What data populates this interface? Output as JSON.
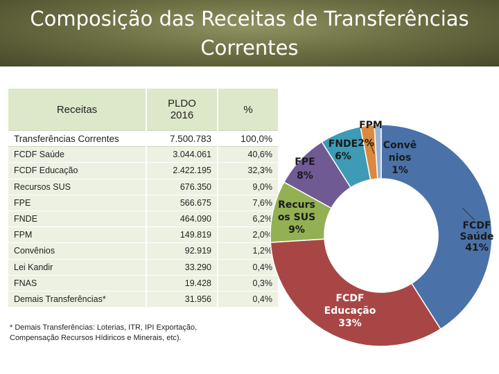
{
  "header": {
    "title_line1": "Composição das Receitas de Transferências",
    "title_line2": "Correntes"
  },
  "table": {
    "headers": [
      "Receitas",
      "PLDO 2016",
      "%"
    ],
    "rows": [
      {
        "receita": "Transferências Correntes",
        "pldo": "7.500.783",
        "pct": "100,0%"
      },
      {
        "receita": "FCDF Saúde",
        "pldo": "3.044.061",
        "pct": "40,6%"
      },
      {
        "receita": "FCDF Educação",
        "pldo": "2.422.195",
        "pct": "32,3%"
      },
      {
        "receita": "Recursos SUS",
        "pldo": "676.350",
        "pct": "9,0%"
      },
      {
        "receita": "FPE",
        "pldo": "566.675",
        "pct": "7,6%"
      },
      {
        "receita": "FNDE",
        "pldo": "464.090",
        "pct": "6,2%"
      },
      {
        "receita": "FPM",
        "pldo": "149.819",
        "pct": "2,0%"
      },
      {
        "receita": "Convênios",
        "pldo": "92.919",
        "pct": "1,2%"
      },
      {
        "receita": "Lei Kandir",
        "pldo": "33.290",
        "pct": "0,4%"
      },
      {
        "receita": "FNAS",
        "pldo": "19.428",
        "pct": "0,3%"
      },
      {
        "receita": "Demais Transferências*",
        "pldo": "31.956",
        "pct": "0,4%"
      }
    ],
    "footnote": "* Demais Transferências: Loterias, ITR, IPI Exportação, Compensação Recursos Hídiricos e Minerais, etc)."
  },
  "chart_data": {
    "type": "pie",
    "style": "donut",
    "slices": [
      {
        "label_lines": [
          "FCDF",
          "Saúde",
          "41%"
        ],
        "value": 41,
        "color": "#4a72a8"
      },
      {
        "label_lines": [
          "FCDF",
          "Educação",
          "33%"
        ],
        "value": 33,
        "color": "#a84646"
      },
      {
        "label_lines": [
          "Recurs",
          "os SUS",
          "9%"
        ],
        "value": 9,
        "color": "#93b053"
      },
      {
        "label_lines": [
          "FPE",
          "8%"
        ],
        "value": 8,
        "color": "#6f5a94"
      },
      {
        "label_lines": [
          "FNDE",
          "6%"
        ],
        "value": 6,
        "color": "#3d9bb5"
      },
      {
        "label_lines": [
          "FPM",
          "2%"
        ],
        "value": 2,
        "color": "#d98a3d"
      },
      {
        "label_lines": [
          "Convê",
          "nios",
          "1%"
        ],
        "value": 1,
        "color": "#9db3d6"
      }
    ]
  }
}
